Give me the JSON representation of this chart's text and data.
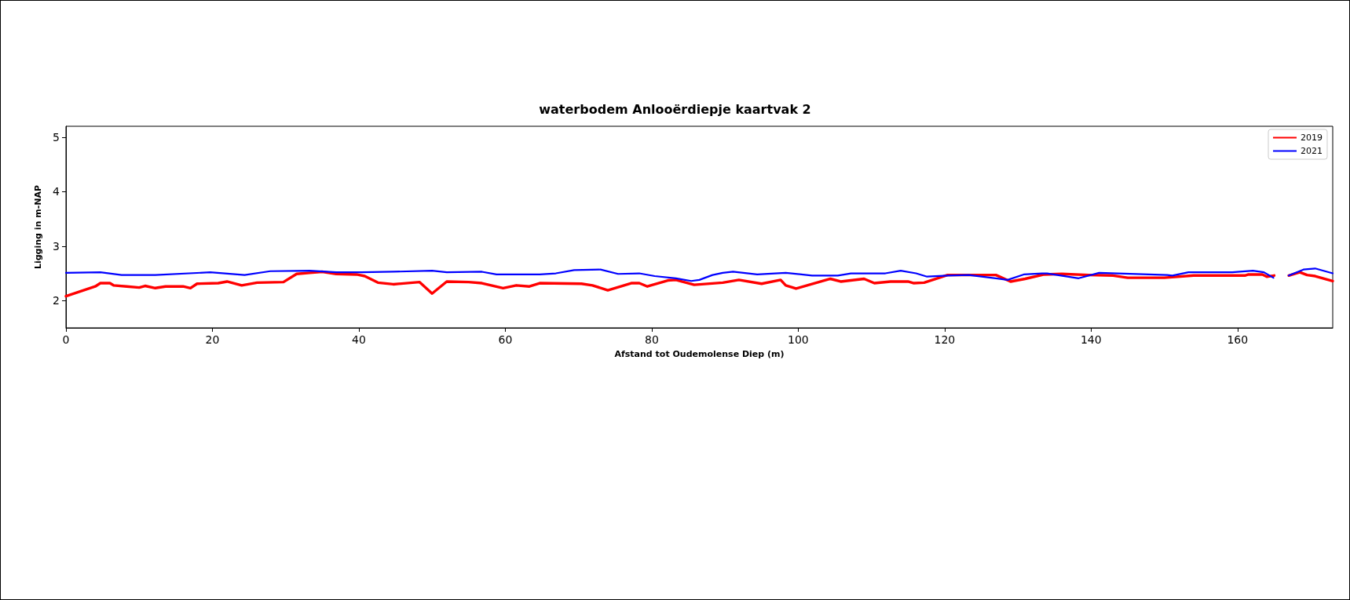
{
  "chart_data": {
    "type": "line",
    "title": "waterbodem Anlooërdiepje kaartvak 2",
    "xlabel": "Afstand tot Oudemolense Diep (m)",
    "ylabel": "Ligging in m-NAP",
    "xlim": [
      0,
      173
    ],
    "xticks": [
      0,
      20,
      40,
      60,
      80,
      100,
      120,
      140,
      160
    ],
    "ylim": [
      1.5,
      5.2
    ],
    "yticks": [
      2,
      3,
      4,
      5
    ],
    "grid": false,
    "legend": "top right",
    "marker": "none",
    "line_style": "solid",
    "series": [
      {
        "name": "2019",
        "color": "#ff0000",
        "x": [
          0,
          4,
          4.7,
          6,
          6.5,
          8.3,
          10,
          10.8,
          12.2,
          13.6,
          16,
          17,
          17.9,
          20.8,
          22,
          24,
          26.1,
          29.7,
          31.5,
          33.3,
          35,
          36.9,
          39.7,
          40.8,
          42.6,
          44.7,
          48.3,
          50,
          52,
          55,
          56.8,
          59.7,
          61.5,
          63.3,
          64.7,
          70.4,
          71.9,
          74,
          77.2,
          78.3,
          79.4,
          82.2,
          83.3,
          85.8,
          89.7,
          91.9,
          95,
          97.6,
          98.3,
          99.7,
          104.4,
          105.8,
          109,
          110.4,
          112.6,
          115,
          115.8,
          117.2,
          120.4,
          127,
          129,
          131,
          133.6,
          136,
          139.7,
          143,
          145,
          150,
          154,
          161,
          161.5,
          163.4,
          164,
          165,
          166,
          167,
          168.5,
          169.5,
          170.6,
          173
        ],
        "values": [
          2.08,
          2.26,
          2.32,
          2.32,
          2.28,
          2.26,
          2.24,
          2.27,
          2.23,
          2.26,
          2.26,
          2.23,
          2.31,
          2.32,
          2.35,
          2.28,
          2.33,
          2.34,
          2.49,
          2.51,
          2.53,
          2.49,
          2.48,
          2.45,
          2.33,
          2.3,
          2.34,
          2.13,
          2.35,
          2.34,
          2.32,
          2.23,
          2.28,
          2.26,
          2.32,
          2.31,
          2.28,
          2.19,
          2.32,
          2.32,
          2.26,
          2.37,
          2.38,
          2.29,
          2.33,
          2.38,
          2.31,
          2.38,
          2.28,
          2.22,
          2.4,
          2.35,
          2.4,
          2.32,
          2.35,
          2.35,
          2.32,
          2.33,
          2.47,
          2.47,
          2.35,
          2.4,
          2.48,
          2.49,
          2.47,
          2.46,
          2.42,
          2.42,
          2.46,
          2.46,
          2.48,
          2.48,
          2.44,
          2.46,
          null,
          2.46,
          2.52,
          2.47,
          2.45,
          2.36
        ]
      },
      {
        "name": "2021",
        "color": "#0000ff",
        "x": [
          0,
          4.7,
          7.6,
          12.2,
          19.7,
          24.4,
          27.9,
          33.3,
          36.9,
          40.4,
          44.7,
          50,
          52,
          56.8,
          58.8,
          64.7,
          66.9,
          69.4,
          73,
          75.4,
          78.3,
          80.4,
          83.3,
          85.4,
          86.5,
          88.3,
          89.7,
          91.1,
          94.4,
          98.3,
          101.9,
          105.4,
          107.2,
          111.9,
          114,
          116.1,
          117.6,
          120.4,
          123.3,
          128.6,
          130.8,
          133.3,
          134,
          138.3,
          141.1,
          150.4,
          151.1,
          153.3,
          159.3,
          162.1,
          163.6,
          164.9,
          166,
          167,
          169,
          170.6,
          173
        ],
        "values": [
          2.51,
          2.52,
          2.47,
          2.47,
          2.52,
          2.47,
          2.54,
          2.55,
          2.52,
          2.52,
          2.53,
          2.55,
          2.52,
          2.53,
          2.48,
          2.48,
          2.5,
          2.56,
          2.57,
          2.49,
          2.5,
          2.45,
          2.41,
          2.36,
          2.38,
          2.47,
          2.51,
          2.53,
          2.48,
          2.51,
          2.46,
          2.46,
          2.5,
          2.5,
          2.55,
          2.5,
          2.44,
          2.46,
          2.47,
          2.38,
          2.48,
          2.5,
          2.5,
          2.41,
          2.51,
          2.47,
          2.46,
          2.52,
          2.52,
          2.55,
          2.52,
          2.42,
          null,
          2.46,
          2.57,
          2.59,
          2.5
        ]
      }
    ]
  }
}
